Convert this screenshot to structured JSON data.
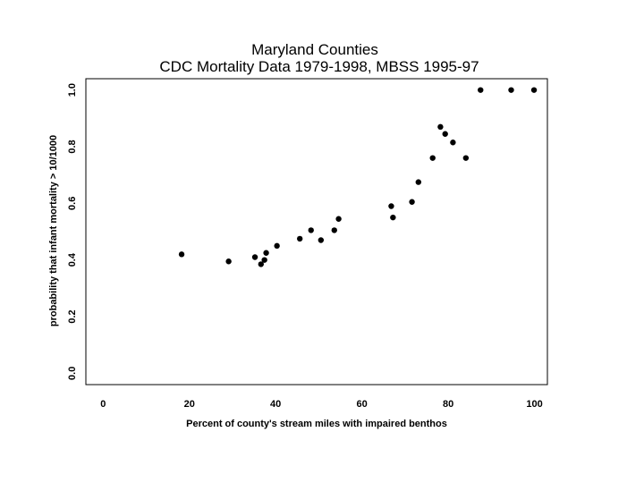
{
  "chart_data": {
    "type": "scatter",
    "title": "Maryland Counties",
    "subtitle": "CDC Mortality Data 1979-1998, MBSS 1995-97",
    "xlabel": "Percent of county's stream miles with impaired benthos",
    "ylabel": "probability that infant mortality > 10/1000",
    "xlim": [
      -4,
      103
    ],
    "ylim": [
      -0.04,
      1.04
    ],
    "xticks": [
      0,
      20,
      40,
      60,
      80,
      100
    ],
    "yticks": [
      0.0,
      0.2,
      0.4,
      0.6,
      0.8,
      1.0
    ],
    "xtick_labels": [
      "0",
      "20",
      "40",
      "60",
      "80",
      "100"
    ],
    "ytick_labels": [
      "0.0",
      "0.2",
      "0.4",
      "0.6",
      "0.8",
      "1.0"
    ],
    "grid": false,
    "legend": "none",
    "marker_color": "#000000",
    "points": [
      {
        "x": 18.2,
        "y": 0.42
      },
      {
        "x": 29.1,
        "y": 0.395
      },
      {
        "x": 35.2,
        "y": 0.41
      },
      {
        "x": 36.6,
        "y": 0.385
      },
      {
        "x": 37.4,
        "y": 0.4
      },
      {
        "x": 37.8,
        "y": 0.425
      },
      {
        "x": 40.3,
        "y": 0.45
      },
      {
        "x": 45.6,
        "y": 0.475
      },
      {
        "x": 48.2,
        "y": 0.505
      },
      {
        "x": 50.5,
        "y": 0.47
      },
      {
        "x": 53.6,
        "y": 0.505
      },
      {
        "x": 54.6,
        "y": 0.545
      },
      {
        "x": 66.8,
        "y": 0.59
      },
      {
        "x": 67.2,
        "y": 0.55
      },
      {
        "x": 71.6,
        "y": 0.605
      },
      {
        "x": 73.1,
        "y": 0.675
      },
      {
        "x": 76.4,
        "y": 0.76
      },
      {
        "x": 78.2,
        "y": 0.87
      },
      {
        "x": 79.3,
        "y": 0.845
      },
      {
        "x": 81.1,
        "y": 0.815
      },
      {
        "x": 84.1,
        "y": 0.76
      },
      {
        "x": 87.5,
        "y": 1.0
      },
      {
        "x": 94.6,
        "y": 1.0
      },
      {
        "x": 99.9,
        "y": 1.0
      }
    ]
  }
}
